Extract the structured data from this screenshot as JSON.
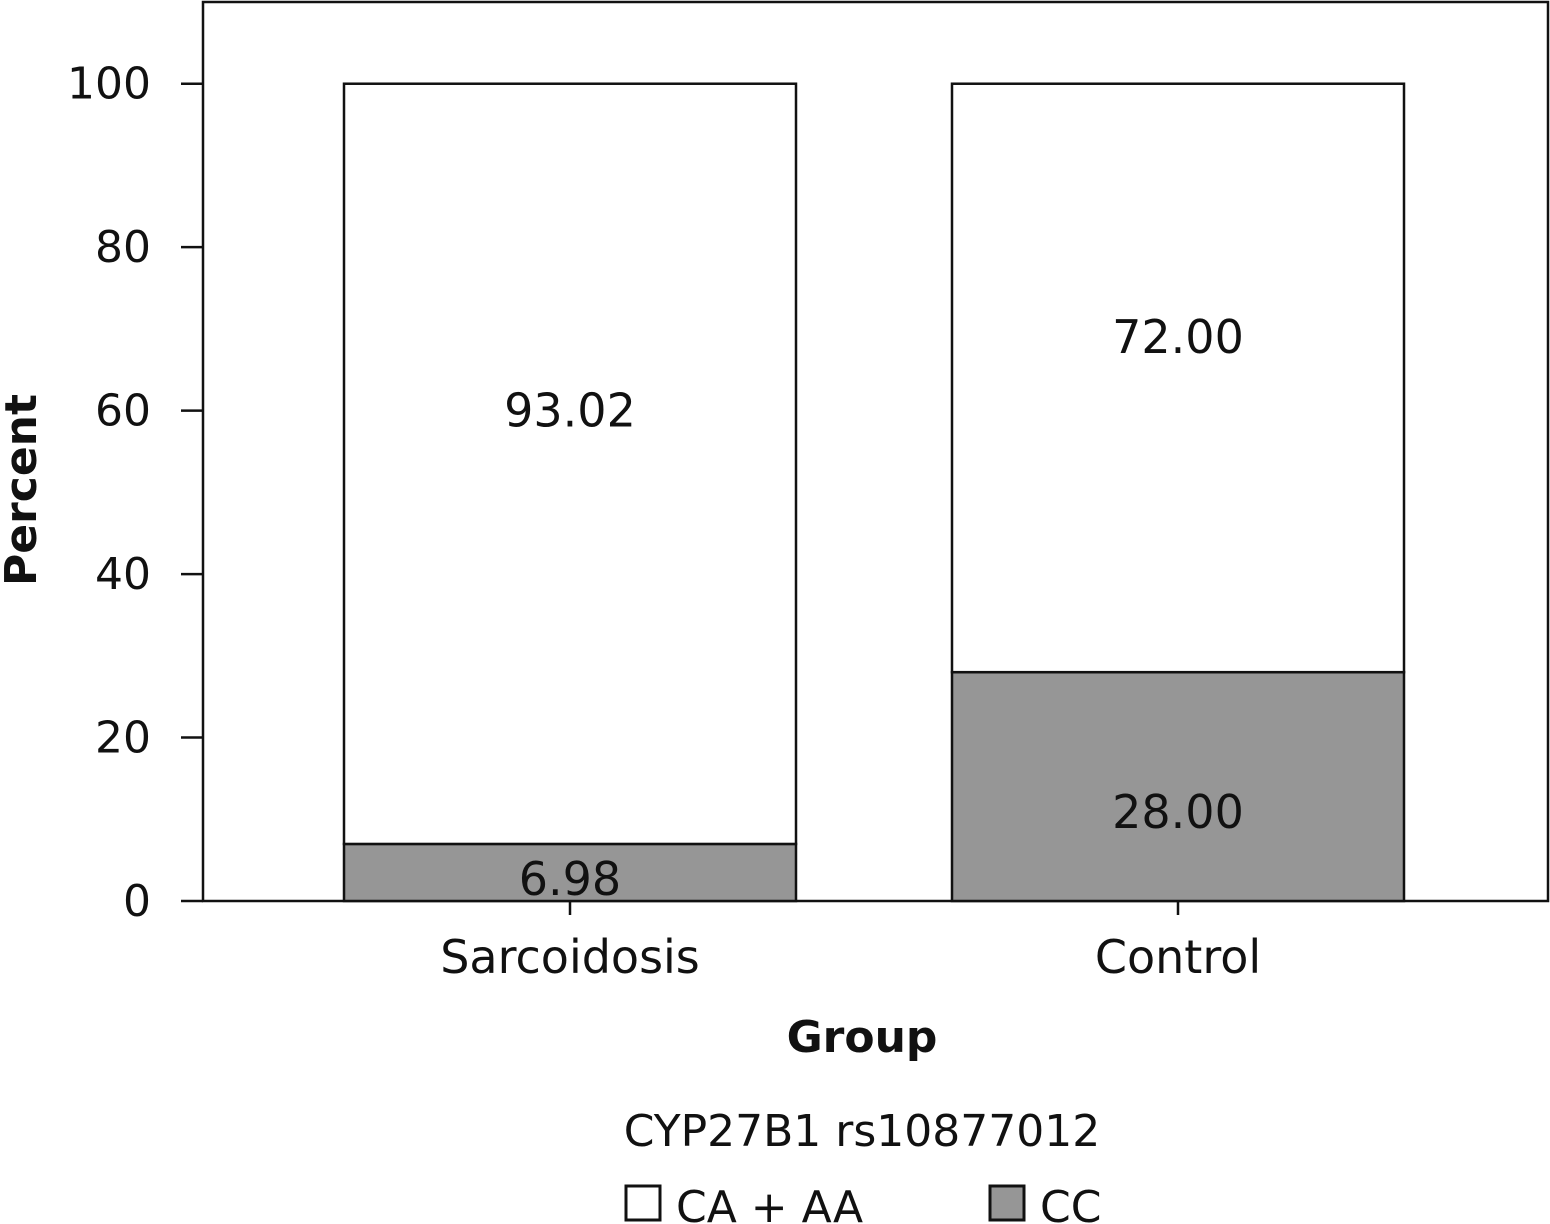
{
  "chart_data": {
    "type": "bar",
    "stacked": true,
    "categories": [
      "Sarcoidosis",
      "Control"
    ],
    "series": [
      {
        "name": "CC",
        "values": [
          6.98,
          28.0
        ],
        "labels": [
          "6.98",
          "28.00"
        ],
        "color": "#969696"
      },
      {
        "name": "CA + AA",
        "values": [
          93.02,
          72.0
        ],
        "labels": [
          "93.02",
          "72.00"
        ],
        "color": "#ffffff"
      }
    ],
    "xlabel": "Group",
    "ylabel": "Percent",
    "ylim": [
      0,
      110
    ],
    "yticks": [
      0,
      20,
      40,
      60,
      80,
      100
    ],
    "legend_title": "CYP27B1 rs10877012",
    "legend_position": "bottom",
    "grid": false
  }
}
